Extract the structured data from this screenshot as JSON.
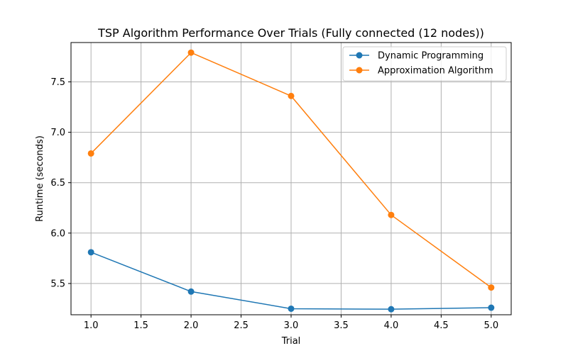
{
  "chart_data": {
    "type": "line",
    "title": "TSP Algorithm Performance Over Trials (Fully connected (12 nodes))",
    "xlabel": "Trial",
    "ylabel": "Runtime (seconds)",
    "x": [
      1,
      2,
      3,
      4,
      5
    ],
    "xlim": [
      0.8,
      5.2
    ],
    "ylim": [
      5.19,
      7.89
    ],
    "xticks": [
      "1.0",
      "1.5",
      "2.0",
      "2.5",
      "3.0",
      "3.5",
      "4.0",
      "4.5",
      "5.0"
    ],
    "xtick_values": [
      1.0,
      1.5,
      2.0,
      2.5,
      3.0,
      3.5,
      4.0,
      4.5,
      5.0
    ],
    "yticks": [
      "5.5",
      "6.0",
      "6.5",
      "7.0",
      "7.5"
    ],
    "ytick_values": [
      5.5,
      6.0,
      6.5,
      7.0,
      7.5
    ],
    "grid": true,
    "legend_position": "top-right",
    "series": [
      {
        "name": "Dynamic Programming",
        "color": "#1f77b4",
        "marker": "circle",
        "values": [
          5.81,
          5.42,
          5.25,
          5.245,
          5.26
        ]
      },
      {
        "name": "Approximation Algorithm",
        "color": "#ff7f0e",
        "marker": "circle",
        "values": [
          6.79,
          7.79,
          7.36,
          6.18,
          5.46
        ]
      }
    ]
  }
}
